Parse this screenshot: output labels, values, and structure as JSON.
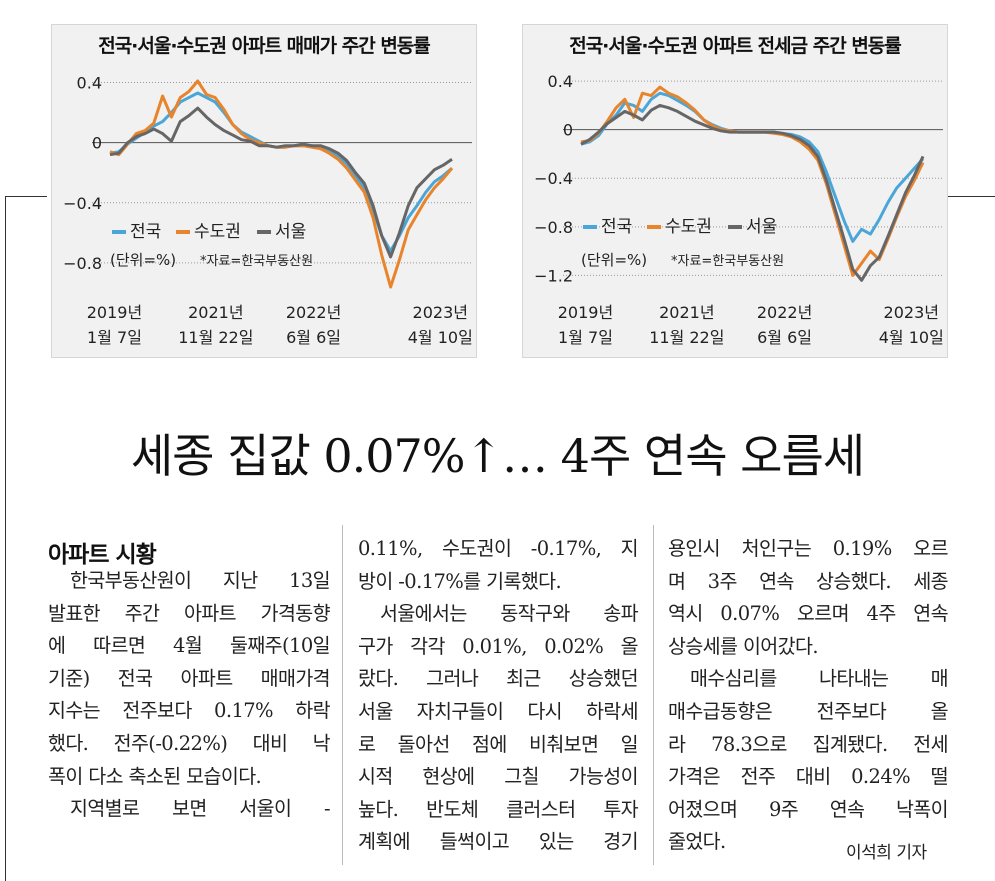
{
  "chart_data": [
    {
      "type": "line",
      "title": "전국·서울·수도권 아파트 매매가 주간 변동률",
      "yticks": [
        "0.4",
        "0",
        "−0.4",
        "−0.8"
      ],
      "ytick_values": [
        0.4,
        0,
        -0.4,
        -0.8
      ],
      "ylim": [
        -0.98,
        0.45
      ],
      "xticks": [
        {
          "year": "2019년",
          "date": "1월 7일",
          "pos": 0.04
        },
        {
          "year": "2021년",
          "date": "11월 22일",
          "pos": 0.32
        },
        {
          "year": "2022년",
          "date": "6월 6일",
          "pos": 0.59
        },
        {
          "year": "2023년",
          "date": "4월 10일",
          "pos": 0.94
        }
      ],
      "legend": [
        "전국",
        "수도권",
        "서울"
      ],
      "unit_note": "(단위=%)",
      "source_note": "*자료=한국부동산원",
      "series": [
        {
          "name": "전국",
          "color": "#4aa6d8",
          "values": [
            -0.07,
            -0.06,
            -0.01,
            0.03,
            0.07,
            0.11,
            0.14,
            0.2,
            0.27,
            0.3,
            0.33,
            0.3,
            0.27,
            0.2,
            0.12,
            0.07,
            0.04,
            0.01,
            -0.02,
            -0.03,
            -0.03,
            -0.02,
            -0.02,
            -0.02,
            -0.03,
            -0.05,
            -0.09,
            -0.14,
            -0.22,
            -0.3,
            -0.45,
            -0.62,
            -0.72,
            -0.62,
            -0.5,
            -0.42,
            -0.33,
            -0.26,
            -0.22,
            -0.17
          ]
        },
        {
          "name": "수도권",
          "color": "#e8842c",
          "values": [
            -0.06,
            -0.08,
            -0.01,
            0.06,
            0.08,
            0.13,
            0.31,
            0.17,
            0.3,
            0.34,
            0.41,
            0.32,
            0.3,
            0.22,
            0.12,
            0.06,
            0.02,
            0.0,
            -0.02,
            -0.03,
            -0.03,
            -0.02,
            -0.02,
            -0.03,
            -0.04,
            -0.07,
            -0.11,
            -0.17,
            -0.25,
            -0.33,
            -0.5,
            -0.75,
            -0.96,
            -0.78,
            -0.58,
            -0.48,
            -0.38,
            -0.3,
            -0.24,
            -0.17
          ]
        },
        {
          "name": "서울",
          "color": "#666666",
          "values": [
            -0.08,
            -0.07,
            0.0,
            0.04,
            0.06,
            0.09,
            0.06,
            0.01,
            0.14,
            0.18,
            0.23,
            0.17,
            0.12,
            0.08,
            0.05,
            0.02,
            0.01,
            -0.02,
            -0.02,
            -0.03,
            -0.02,
            -0.02,
            -0.01,
            -0.02,
            -0.02,
            -0.04,
            -0.07,
            -0.12,
            -0.2,
            -0.27,
            -0.42,
            -0.62,
            -0.76,
            -0.6,
            -0.42,
            -0.3,
            -0.24,
            -0.18,
            -0.15,
            -0.11
          ]
        }
      ]
    },
    {
      "type": "line",
      "title": "전국·서울·수도권 아파트 전세금 주간 변동률",
      "yticks": [
        "0.4",
        "0",
        "−0.4",
        "−0.8",
        "−1.2"
      ],
      "ytick_values": [
        0.4,
        0,
        -0.4,
        -0.8,
        -1.2
      ],
      "ylim": [
        -1.32,
        0.45
      ],
      "xticks": [
        {
          "year": "2019년",
          "date": "1월 7일",
          "pos": 0.04
        },
        {
          "year": "2021년",
          "date": "11월 22일",
          "pos": 0.32
        },
        {
          "year": "2022년",
          "date": "6월 6일",
          "pos": 0.59
        },
        {
          "year": "2023년",
          "date": "4월 10일",
          "pos": 0.94
        }
      ],
      "legend": [
        "전국",
        "수도권",
        "서울"
      ],
      "unit_note": "(단위=%)",
      "source_note": "*자료=한국부동산원",
      "series": [
        {
          "name": "전국",
          "color": "#4aa6d8",
          "values": [
            -0.12,
            -0.1,
            -0.05,
            0.05,
            0.12,
            0.22,
            0.2,
            0.15,
            0.25,
            0.3,
            0.28,
            0.24,
            0.2,
            0.15,
            0.08,
            0.04,
            0.01,
            -0.01,
            -0.02,
            -0.02,
            -0.02,
            -0.02,
            -0.02,
            -0.03,
            -0.04,
            -0.06,
            -0.1,
            -0.18,
            -0.35,
            -0.55,
            -0.75,
            -0.92,
            -0.82,
            -0.86,
            -0.74,
            -0.6,
            -0.48,
            -0.4,
            -0.32,
            -0.24
          ]
        },
        {
          "name": "수도권",
          "color": "#e8842c",
          "values": [
            -0.1,
            -0.09,
            -0.03,
            0.07,
            0.18,
            0.25,
            0.1,
            0.3,
            0.28,
            0.35,
            0.3,
            0.27,
            0.22,
            0.16,
            0.08,
            0.03,
            0.0,
            -0.01,
            -0.02,
            -0.02,
            -0.02,
            -0.02,
            -0.03,
            -0.04,
            -0.06,
            -0.1,
            -0.16,
            -0.25,
            -0.45,
            -0.7,
            -0.95,
            -1.2,
            -1.1,
            -1.0,
            -1.07,
            -0.9,
            -0.72,
            -0.55,
            -0.42,
            -0.27
          ]
        },
        {
          "name": "서울",
          "color": "#666666",
          "values": [
            -0.12,
            -0.08,
            -0.02,
            0.05,
            0.1,
            0.15,
            0.12,
            0.08,
            0.16,
            0.2,
            0.18,
            0.15,
            0.11,
            0.07,
            0.04,
            0.01,
            -0.01,
            -0.02,
            -0.02,
            -0.02,
            -0.02,
            -0.02,
            -0.02,
            -0.03,
            -0.05,
            -0.08,
            -0.13,
            -0.22,
            -0.42,
            -0.66,
            -0.9,
            -1.15,
            -1.24,
            -1.12,
            -1.05,
            -0.88,
            -0.7,
            -0.52,
            -0.38,
            -0.22
          ]
        }
      ]
    }
  ],
  "headline": "세종 집값 0.07%↑… 4주 연속 오름세",
  "section_head": "아파트 시황",
  "columns": [
    [
      "한국부동산원이 지난 13일",
      "발표한 주간 아파트 가격동향",
      "에 따르면 4월 둘째주(10일",
      "기준) 전국 아파트 매매가격",
      "지수는 전주보다 0.17% 하락",
      "했다. 전주(-0.22%) 대비 낙",
      "폭이 다소 축소된 모습이다.",
      "지역별로 보면 서울이 -"
    ],
    [
      "0.11%, 수도권이 -0.17%, 지",
      "방이 -0.17%를 기록했다.",
      "서울에서는 동작구와 송파",
      "구가 각각 0.01%, 0.02% 올",
      "랐다. 그러나 최근 상승했던",
      "서울 자치구들이 다시 하락세",
      "로 돌아선 점에 비춰보면 일",
      "시적 현상에 그칠 가능성이",
      "높다. 반도체 클러스터 투자",
      "계획에 들썩이고 있는 경기"
    ],
    [
      "용인시 처인구는 0.19% 오르",
      "며 3주 연속 상승했다. 세종",
      "역시 0.07% 오르며 4주 연속",
      "상승세를 이어갔다.",
      "매수심리를 나타내는 매",
      "매수급동향은 전주보다 올",
      "라 78.3으로 집계됐다. 전세",
      "가격은 전주 대비 0.24% 떨",
      "어졌으며 9주 연속 낙폭이",
      "줄었다."
    ]
  ],
  "byline": "이석희 기자"
}
